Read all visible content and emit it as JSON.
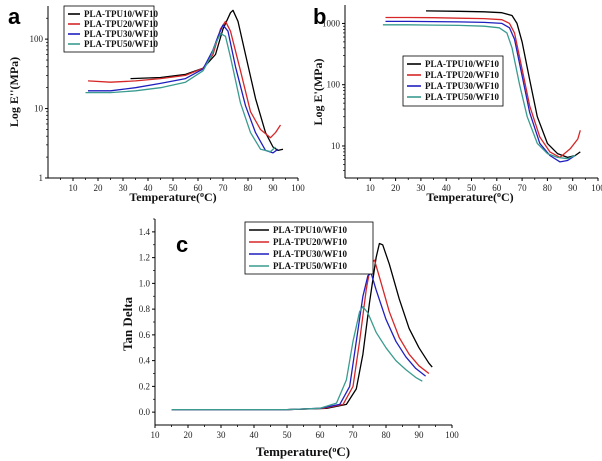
{
  "colors": [
    "#000000",
    "#d62728",
    "#1f1fbf",
    "#3a9b8f"
  ],
  "chart_data": [
    {
      "panel": "a",
      "type": "line",
      "yscale": "log",
      "xlabel": "Temperature(",
      "xlabel_sup": "o",
      "xlabel_end": "C)",
      "ylabel": "Log E''(MPa)",
      "xlim": [
        0,
        100
      ],
      "ylim": [
        1,
        300
      ],
      "xticks": [
        10,
        20,
        30,
        40,
        50,
        60,
        70,
        80,
        90,
        100
      ],
      "yticks": [
        1,
        10,
        100
      ],
      "legend_position": "top-left",
      "series": [
        {
          "name": "PLA-TPU10/WF10",
          "points": [
            [
              33,
              27
            ],
            [
              45,
              28
            ],
            [
              55,
              31
            ],
            [
              62,
              38
            ],
            [
              67,
              60
            ],
            [
              70,
              140
            ],
            [
              73,
              240
            ],
            [
              74,
              260
            ],
            [
              76,
              180
            ],
            [
              79,
              60
            ],
            [
              83,
              14
            ],
            [
              87,
              4.5
            ],
            [
              90,
              2.8
            ],
            [
              92,
              2.5
            ],
            [
              94,
              2.6
            ]
          ]
        },
        {
          "name": "PLA-TPU20/WF10",
          "points": [
            [
              16,
              25
            ],
            [
              25,
              24
            ],
            [
              35,
              25
            ],
            [
              45,
              27
            ],
            [
              55,
              30
            ],
            [
              62,
              38
            ],
            [
              66,
              60
            ],
            [
              69,
              140
            ],
            [
              71,
              180
            ],
            [
              73,
              130
            ],
            [
              77,
              35
            ],
            [
              81,
              9
            ],
            [
              85,
              5
            ],
            [
              89,
              3.8
            ],
            [
              91,
              4.5
            ],
            [
              93,
              5.8
            ]
          ]
        },
        {
          "name": "PLA-TPU30/WF10",
          "points": [
            [
              16,
              18
            ],
            [
              25,
              18
            ],
            [
              35,
              20
            ],
            [
              45,
              23
            ],
            [
              55,
              27
            ],
            [
              62,
              37
            ],
            [
              66,
              70
            ],
            [
              68,
              110
            ],
            [
              70,
              160
            ],
            [
              72,
              130
            ],
            [
              75,
              40
            ],
            [
              79,
              11
            ],
            [
              83,
              4.5
            ],
            [
              87,
              2.5
            ],
            [
              90,
              2.3
            ],
            [
              92,
              2.6
            ]
          ]
        },
        {
          "name": "PLA-TPU50/WF10",
          "points": [
            [
              15,
              17
            ],
            [
              25,
              17
            ],
            [
              35,
              18
            ],
            [
              45,
              20
            ],
            [
              55,
              24
            ],
            [
              62,
              35
            ],
            [
              65,
              55
            ],
            [
              67,
              85
            ],
            [
              69,
              120
            ],
            [
              71,
              110
            ],
            [
              73,
              55
            ],
            [
              77,
              12
            ],
            [
              81,
              4.5
            ],
            [
              85,
              2.6
            ],
            [
              89,
              2.4
            ],
            [
              91,
              2.8
            ]
          ]
        }
      ]
    },
    {
      "panel": "b",
      "type": "line",
      "yscale": "log",
      "xlabel": "Temperature(",
      "xlabel_sup": "o",
      "xlabel_end": "C)",
      "ylabel": "Log E'(MPa)",
      "xlim": [
        0,
        100
      ],
      "ylim": [
        3,
        2000
      ],
      "xticks": [
        10,
        20,
        30,
        40,
        50,
        60,
        70,
        80,
        90,
        100
      ],
      "yticks": [
        10,
        100,
        1000
      ],
      "legend_position": "center-right",
      "series": [
        {
          "name": "PLA-TPU10/WF10",
          "points": [
            [
              32,
              1600
            ],
            [
              45,
              1580
            ],
            [
              55,
              1550
            ],
            [
              62,
              1500
            ],
            [
              66,
              1350
            ],
            [
              68,
              1000
            ],
            [
              70,
              500
            ],
            [
              73,
              120
            ],
            [
              76,
              30
            ],
            [
              80,
              11
            ],
            [
              84,
              7.5
            ],
            [
              88,
              6.5
            ],
            [
              91,
              7
            ],
            [
              93,
              8
            ]
          ]
        },
        {
          "name": "PLA-TPU20/WF10",
          "points": [
            [
              16,
              1250
            ],
            [
              25,
              1250
            ],
            [
              35,
              1240
            ],
            [
              45,
              1220
            ],
            [
              55,
              1200
            ],
            [
              62,
              1150
            ],
            [
              65,
              1000
            ],
            [
              67,
              700
            ],
            [
              70,
              180
            ],
            [
              73,
              45
            ],
            [
              77,
              14
            ],
            [
              81,
              8
            ],
            [
              85,
              6.5
            ],
            [
              89,
              9
            ],
            [
              92,
              13
            ],
            [
              93,
              18
            ]
          ]
        },
        {
          "name": "PLA-TPU30/WF10",
          "points": [
            [
              16,
              1080
            ],
            [
              25,
              1080
            ],
            [
              35,
              1070
            ],
            [
              45,
              1060
            ],
            [
              55,
              1040
            ],
            [
              62,
              1000
            ],
            [
              65,
              850
            ],
            [
              67,
              550
            ],
            [
              70,
              140
            ],
            [
              73,
              35
            ],
            [
              77,
              11
            ],
            [
              81,
              7
            ],
            [
              85,
              5.5
            ],
            [
              88,
              5.8
            ],
            [
              91,
              7
            ]
          ]
        },
        {
          "name": "PLA-TPU50/WF10",
          "points": [
            [
              15,
              950
            ],
            [
              25,
              950
            ],
            [
              35,
              940
            ],
            [
              45,
              930
            ],
            [
              55,
              900
            ],
            [
              61,
              850
            ],
            [
              64,
              700
            ],
            [
              66,
              400
            ],
            [
              69,
              100
            ],
            [
              72,
              30
            ],
            [
              76,
              11
            ],
            [
              80,
              7.5
            ],
            [
              84,
              6.5
            ],
            [
              88,
              6.2
            ],
            [
              91,
              7
            ]
          ]
        }
      ]
    },
    {
      "panel": "c",
      "type": "line",
      "yscale": "linear",
      "xlabel": "Temperature(",
      "xlabel_sup": "o",
      "xlabel_end": "C)",
      "ylabel": "Tan Delta",
      "xlim": [
        10,
        100
      ],
      "ylim": [
        -0.1,
        1.5
      ],
      "xticks": [
        10,
        20,
        30,
        40,
        50,
        60,
        70,
        80,
        90,
        100
      ],
      "yticks": [
        0.0,
        0.2,
        0.4,
        0.6,
        0.8,
        1.0,
        1.2,
        1.4
      ],
      "yticklabels": [
        "0.0",
        "0.2",
        "0.4",
        "0.6",
        "0.8",
        "1.0",
        "1.2",
        "1.4"
      ],
      "legend_position": "top",
      "series": [
        {
          "name": "PLA-TPU10/WF10",
          "points": [
            [
              15,
              0.02
            ],
            [
              30,
              0.02
            ],
            [
              50,
              0.02
            ],
            [
              62,
              0.03
            ],
            [
              68,
              0.06
            ],
            [
              71,
              0.18
            ],
            [
              73,
              0.45
            ],
            [
              75,
              0.85
            ],
            [
              77,
              1.2
            ],
            [
              78,
              1.31
            ],
            [
              79,
              1.3
            ],
            [
              81,
              1.15
            ],
            [
              84,
              0.88
            ],
            [
              87,
              0.65
            ],
            [
              90,
              0.5
            ],
            [
              93,
              0.38
            ],
            [
              94,
              0.35
            ]
          ]
        },
        {
          "name": "PLA-TPU20/WF10",
          "points": [
            [
              15,
              0.02
            ],
            [
              30,
              0.02
            ],
            [
              50,
              0.02
            ],
            [
              61,
              0.03
            ],
            [
              67,
              0.06
            ],
            [
              70,
              0.2
            ],
            [
              72,
              0.55
            ],
            [
              74,
              0.95
            ],
            [
              75.5,
              1.16
            ],
            [
              76.5,
              1.18
            ],
            [
              78,
              1.05
            ],
            [
              81,
              0.78
            ],
            [
              84,
              0.58
            ],
            [
              87,
              0.45
            ],
            [
              90,
              0.36
            ],
            [
              93,
              0.3
            ]
          ]
        },
        {
          "name": "PLA-TPU30/WF10",
          "points": [
            [
              15,
              0.02
            ],
            [
              30,
              0.02
            ],
            [
              50,
              0.02
            ],
            [
              60,
              0.03
            ],
            [
              66,
              0.06
            ],
            [
              69,
              0.2
            ],
            [
              71,
              0.55
            ],
            [
              73,
              0.9
            ],
            [
              74.5,
              1.06
            ],
            [
              75.5,
              1.08
            ],
            [
              77,
              0.95
            ],
            [
              80,
              0.72
            ],
            [
              83,
              0.55
            ],
            [
              86,
              0.43
            ],
            [
              89,
              0.34
            ],
            [
              92,
              0.28
            ]
          ]
        },
        {
          "name": "PLA-TPU50/WF10",
          "points": [
            [
              15,
              0.02
            ],
            [
              30,
              0.02
            ],
            [
              50,
              0.02
            ],
            [
              60,
              0.03
            ],
            [
              65,
              0.07
            ],
            [
              68,
              0.25
            ],
            [
              70,
              0.55
            ],
            [
              72,
              0.78
            ],
            [
              73,
              0.82
            ],
            [
              74.5,
              0.77
            ],
            [
              77,
              0.62
            ],
            [
              80,
              0.5
            ],
            [
              83,
              0.4
            ],
            [
              86,
              0.33
            ],
            [
              89,
              0.27
            ],
            [
              91,
              0.24
            ]
          ]
        }
      ]
    }
  ]
}
